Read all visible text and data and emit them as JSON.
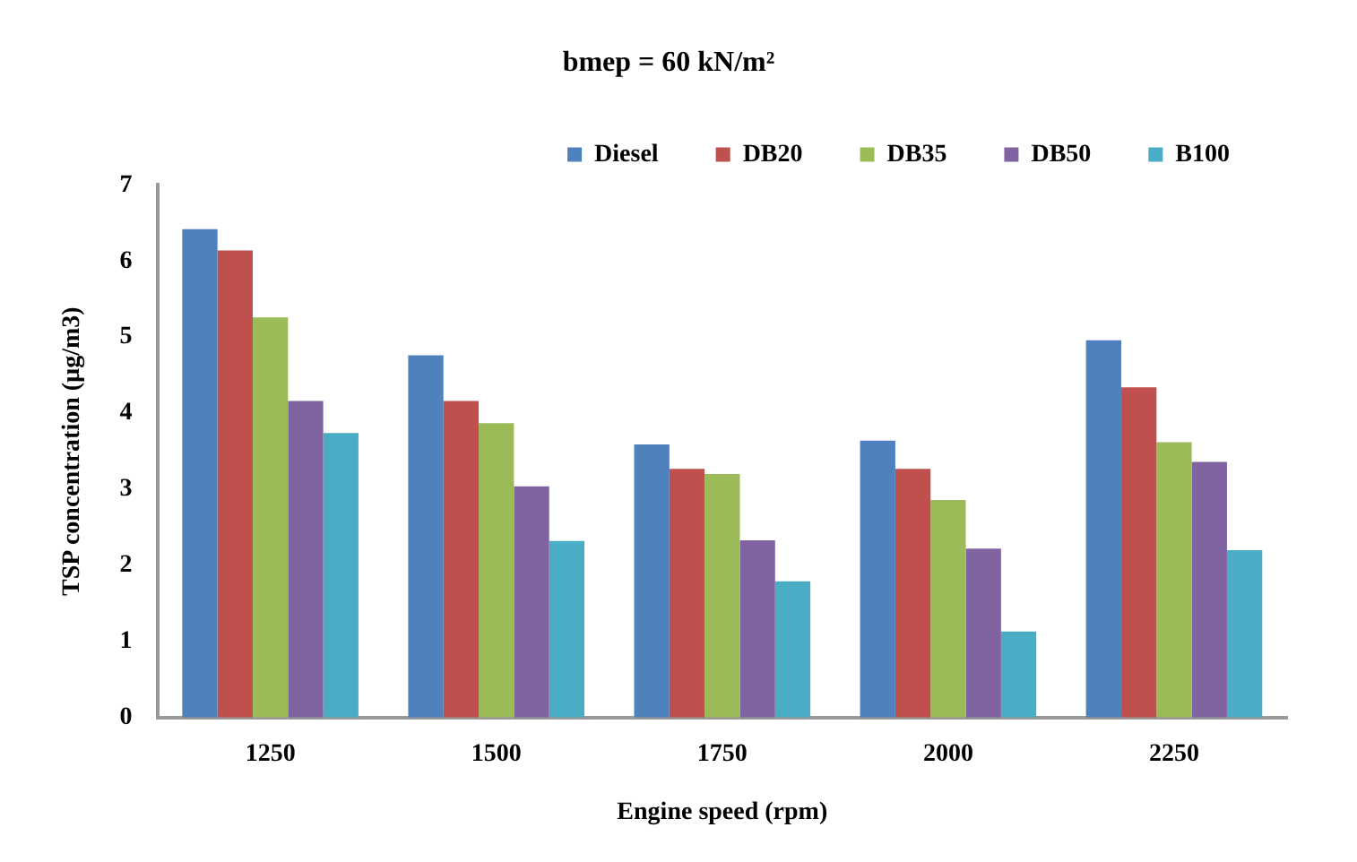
{
  "chart_data": {
    "type": "bar",
    "title": "bmep = 60 kN/m²",
    "xlabel": "Engine speed (rpm)",
    "ylabel": "TSP concentration (µg/m3)",
    "categories": [
      "1250",
      "1500",
      "1750",
      "2000",
      "2250"
    ],
    "series": [
      {
        "name": "Diesel",
        "color": "#4f81bd",
        "values": [
          6.42,
          4.76,
          3.59,
          3.64,
          4.96
        ]
      },
      {
        "name": "DB20",
        "color": "#c0504d",
        "values": [
          6.14,
          4.16,
          3.27,
          3.27,
          4.34
        ]
      },
      {
        "name": "DB35",
        "color": "#9bbb59",
        "values": [
          5.26,
          3.87,
          3.2,
          2.86,
          3.62
        ]
      },
      {
        "name": "DB50",
        "color": "#8064a2",
        "values": [
          4.16,
          3.04,
          2.33,
          2.22,
          3.36
        ]
      },
      {
        "name": "B100",
        "color": "#4bacc6",
        "values": [
          3.74,
          2.32,
          1.79,
          1.13,
          2.2
        ]
      }
    ],
    "ylim": [
      0,
      7
    ],
    "yticks": [
      0,
      1,
      2,
      3,
      4,
      5,
      6,
      7
    ],
    "grid": false,
    "legend": "top right"
  }
}
